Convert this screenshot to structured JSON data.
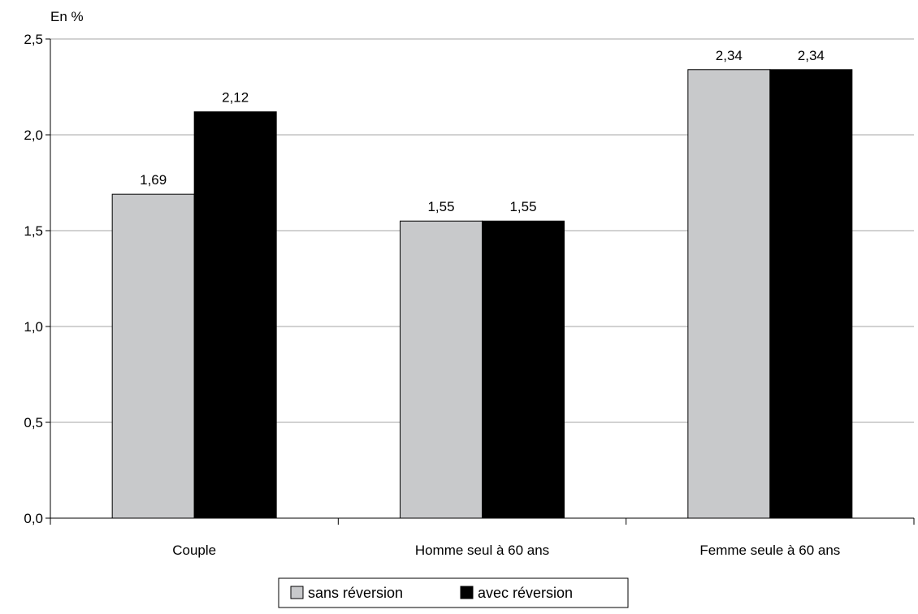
{
  "chart_data": {
    "type": "bar",
    "unit_label": "En %",
    "categories": [
      "Couple",
      "Homme seul à 60 ans",
      "Femme seule à 60 ans"
    ],
    "series": [
      {
        "name": "sans réversion",
        "values": [
          1.69,
          1.55,
          2.34
        ],
        "labels": [
          "1,69",
          "1,55",
          "2,34"
        ],
        "color": "#c8c9cb"
      },
      {
        "name": "avec réversion",
        "values": [
          2.12,
          1.55,
          2.34
        ],
        "labels": [
          "2,12",
          "1,55",
          "2,34"
        ],
        "color": "#000000"
      }
    ],
    "ylim": [
      0,
      2.5
    ],
    "yticks": [
      {
        "value": 0,
        "label": "0,0"
      },
      {
        "value": 0.5,
        "label": "0,5"
      },
      {
        "value": 1.0,
        "label": "1,0"
      },
      {
        "value": 1.5,
        "label": "1,5"
      },
      {
        "value": 2.0,
        "label": "2,0"
      },
      {
        "value": 2.5,
        "label": "2,5"
      }
    ],
    "grid": true,
    "legend_position": "bottom-center"
  }
}
